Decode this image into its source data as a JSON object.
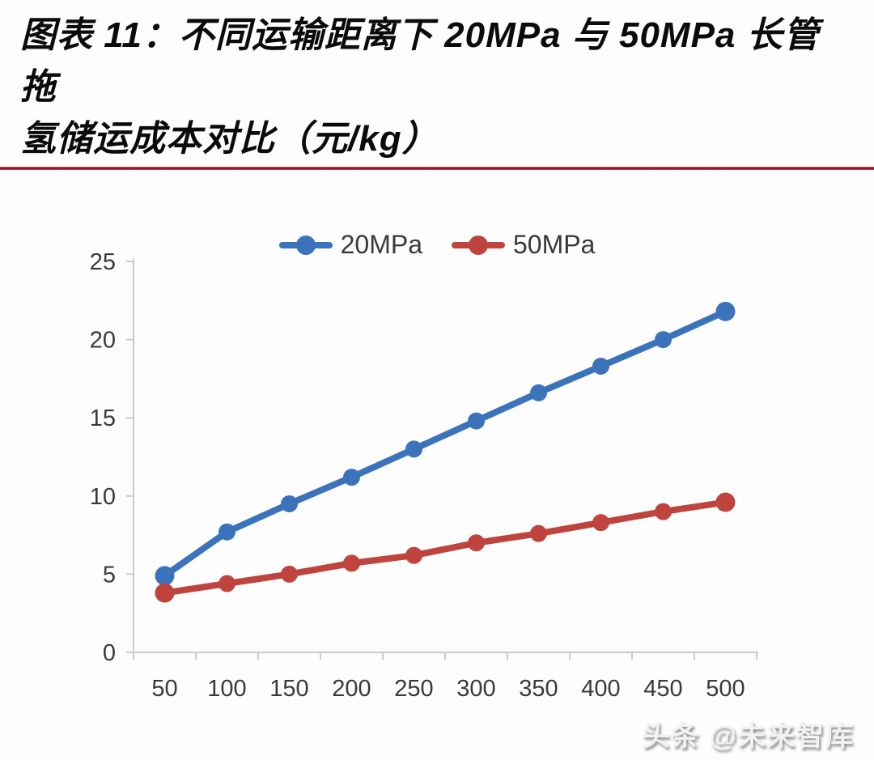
{
  "page": {
    "title_lines": [
      "图表 11：不同运输距离下 20MPa 与 50MPa 长管拖",
      "氢储运成本对比（元/kg）"
    ],
    "watermark": "头条 @未来智库"
  },
  "colors": {
    "title_rule": "#8E1526",
    "axis_line": "#C7CBD1",
    "tick_label": "#3A3A3A",
    "series_20mpa": "#3B73BB",
    "series_50mpa": "#BF443E"
  },
  "chart_data": {
    "type": "line",
    "title": "不同运输距离下20MPa与50MPa长管拖氢储运成本对比",
    "unit": "元/kg",
    "xlabel": "",
    "ylabel": "",
    "x": [
      50,
      100,
      150,
      200,
      250,
      300,
      350,
      400,
      450,
      500
    ],
    "series": [
      {
        "name": "20MPa",
        "color": "#3B73BB",
        "values": [
          4.9,
          7.7,
          9.5,
          11.2,
          13.0,
          14.8,
          16.6,
          18.3,
          20.0,
          21.8
        ]
      },
      {
        "name": "50MPa",
        "color": "#BF443E",
        "values": [
          3.8,
          4.4,
          5.0,
          5.7,
          6.2,
          7.0,
          7.6,
          8.3,
          9.0,
          9.6
        ]
      }
    ],
    "ylim": [
      0,
      25
    ],
    "yticks": [
      0,
      5,
      10,
      15,
      20,
      25
    ],
    "grid": false,
    "legend_position": "top-center"
  }
}
